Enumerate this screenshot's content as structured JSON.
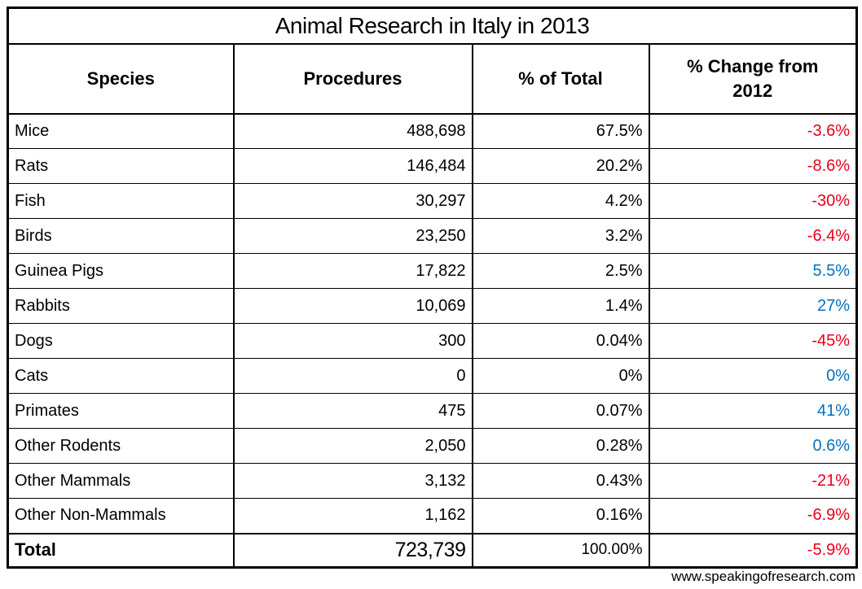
{
  "footer": "www.speakingofresearch.com",
  "colors": {
    "negative": "#e80019",
    "positive": "#0070c0"
  },
  "chart_data": {
    "type": "table",
    "title": "Animal Research in Italy in 2013",
    "columns": [
      "Species",
      "Procedures",
      "% of Total",
      "% Change from 2012"
    ],
    "rows": [
      {
        "species": "Mice",
        "procedures": "488,698",
        "pct_total": "67.5%",
        "change": "-3.6%",
        "change_color": "#e80019"
      },
      {
        "species": "Rats",
        "procedures": "146,484",
        "pct_total": "20.2%",
        "change": "-8.6%",
        "change_color": "#e80019"
      },
      {
        "species": "Fish",
        "procedures": "30,297",
        "pct_total": "4.2%",
        "change": "-30%",
        "change_color": "#e80019"
      },
      {
        "species": "Birds",
        "procedures": "23,250",
        "pct_total": "3.2%",
        "change": "-6.4%",
        "change_color": "#e80019"
      },
      {
        "species": "Guinea Pigs",
        "procedures": "17,822",
        "pct_total": "2.5%",
        "change": "5.5%",
        "change_color": "#0070c0"
      },
      {
        "species": "Rabbits",
        "procedures": "10,069",
        "pct_total": "1.4%",
        "change": "27%",
        "change_color": "#0070c0"
      },
      {
        "species": "Dogs",
        "procedures": "300",
        "pct_total": "0.04%",
        "change": "-45%",
        "change_color": "#e80019"
      },
      {
        "species": "Cats",
        "procedures": "0",
        "pct_total": "0%",
        "change": "0%",
        "change_color": "#0070c0"
      },
      {
        "species": "Primates",
        "procedures": "475",
        "pct_total": "0.07%",
        "change": "41%",
        "change_color": "#0070c0"
      },
      {
        "species": "Other Rodents",
        "procedures": "2,050",
        "pct_total": "0.28%",
        "change": "0.6%",
        "change_color": "#0070c0"
      },
      {
        "species": "Other Mammals",
        "procedures": "3,132",
        "pct_total": "0.43%",
        "change": "-21%",
        "change_color": "#e80019"
      },
      {
        "species": "Other Non-Mammals",
        "procedures": "1,162",
        "pct_total": "0.16%",
        "change": "-6.9%",
        "change_color": "#e80019"
      }
    ],
    "total_row": {
      "species": "Total",
      "procedures": "723,739",
      "pct_total": "100.00%",
      "change": "-5.9%",
      "change_color": "#e80019"
    }
  }
}
